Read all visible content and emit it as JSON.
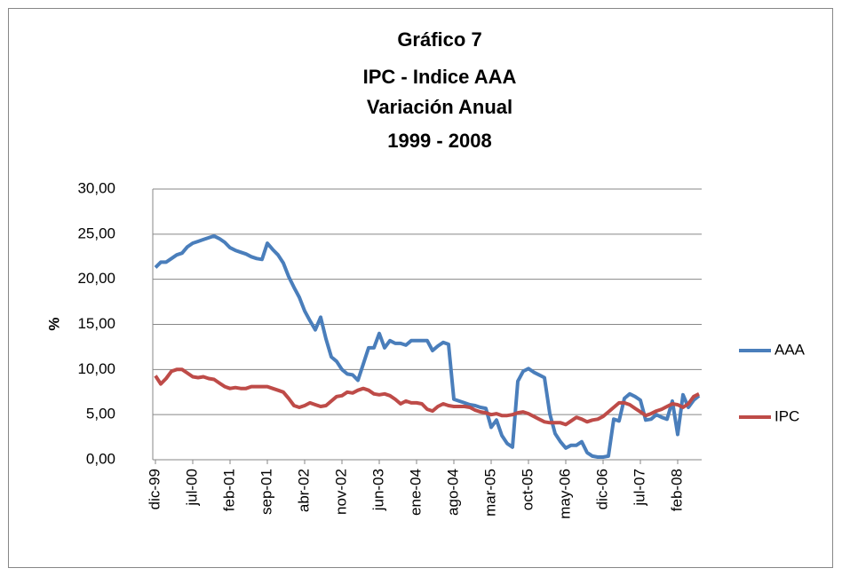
{
  "chart_data": {
    "type": "line",
    "title": [
      "Gráfico 7",
      "IPC - Indice AAA",
      "Variación Anual",
      "1999 - 2008"
    ],
    "y_label": "%",
    "categories": [
      "dic-99",
      null,
      null,
      null,
      null,
      null,
      null,
      "jul-00",
      null,
      null,
      null,
      null,
      null,
      null,
      "feb-01",
      null,
      null,
      null,
      null,
      null,
      null,
      "sep-01",
      null,
      null,
      null,
      null,
      null,
      null,
      "abr-02",
      null,
      null,
      null,
      null,
      null,
      null,
      "nov-02",
      null,
      null,
      null,
      null,
      null,
      null,
      "jun-03",
      null,
      null,
      null,
      null,
      null,
      null,
      "ene-04",
      null,
      null,
      null,
      null,
      null,
      null,
      "ago-04",
      null,
      null,
      null,
      null,
      null,
      null,
      "mar-05",
      null,
      null,
      null,
      null,
      null,
      null,
      "oct-05",
      null,
      null,
      null,
      null,
      null,
      null,
      "may-06",
      null,
      null,
      null,
      null,
      null,
      null,
      "dic-06",
      null,
      null,
      null,
      null,
      null,
      null,
      "jul-07",
      null,
      null,
      null,
      null,
      null,
      null,
      "feb-08",
      null,
      null,
      null,
      null
    ],
    "series": [
      {
        "name": "AAA",
        "color": "#4a7ebb",
        "values": [
          21.3,
          21.9,
          21.9,
          22.3,
          22.7,
          22.9,
          23.6,
          24,
          24.2,
          24.4,
          24.6,
          24.8,
          24.5,
          24.1,
          23.5,
          23.2,
          23,
          22.8,
          22.5,
          22.3,
          22.2,
          24,
          23.3,
          22.7,
          21.8,
          20.3,
          19.1,
          18,
          16.5,
          15.4,
          14.4,
          15.8,
          13.4,
          11.4,
          10.9,
          10,
          9.5,
          9.4,
          8.8,
          10.6,
          12.4,
          12.4,
          14,
          12.4,
          13.2,
          12.9,
          12.9,
          12.7,
          13.2,
          13.2,
          13.2,
          13.2,
          12.1,
          12.6,
          13,
          12.8,
          6.7,
          6.5,
          6.3,
          6.1,
          6,
          5.8,
          5.7,
          3.6,
          4.4,
          2.7,
          1.8,
          1.4,
          8.7,
          9.8,
          10.1,
          9.7,
          9.4,
          9.1,
          5.1,
          2.9,
          2,
          1.3,
          1.6,
          1.6,
          2,
          0.8,
          0.4,
          0.3,
          0.3,
          0.4,
          4.5,
          4.3,
          6.8,
          7.3,
          7,
          6.6,
          4.4,
          4.5,
          5,
          4.7,
          4.5,
          6.5,
          2.8,
          7.2,
          5.8,
          6.6,
          7.1
        ]
      },
      {
        "name": "IPC",
        "color": "#be4b48",
        "values": [
          9.3,
          8.4,
          9,
          9.8,
          10,
          10,
          9.6,
          9.2,
          9.1,
          9.2,
          9,
          8.9,
          8.5,
          8.1,
          7.9,
          8,
          7.9,
          7.9,
          8.1,
          8.1,
          8.1,
          8.1,
          7.9,
          7.7,
          7.5,
          6.8,
          6,
          5.8,
          6,
          6.3,
          6.1,
          5.9,
          6,
          6.5,
          7,
          7.1,
          7.5,
          7.4,
          7.7,
          7.9,
          7.7,
          7.3,
          7.2,
          7.3,
          7.1,
          6.7,
          6.2,
          6.5,
          6.3,
          6.3,
          6.2,
          5.6,
          5.4,
          5.9,
          6.2,
          6,
          5.9,
          5.9,
          5.9,
          5.8,
          5.5,
          5.3,
          5.2,
          5,
          5.1,
          4.9,
          4.9,
          5,
          5.2,
          5.3,
          5.1,
          4.8,
          4.5,
          4.2,
          4.1,
          4.1,
          4.1,
          3.9,
          4.3,
          4.7,
          4.5,
          4.2,
          4.4,
          4.5,
          4.8,
          5.3,
          5.8,
          6.3,
          6.3,
          6.1,
          5.7,
          5.3,
          4.9,
          5.1,
          5.4,
          5.6,
          5.9,
          6.2,
          6.1,
          5.8,
          6.2,
          7,
          7.3
        ]
      }
    ],
    "ylim": [
      0,
      30
    ],
    "yticks": [
      {
        "value": 0,
        "label": "0,00"
      },
      {
        "value": 5,
        "label": "5,00"
      },
      {
        "value": 10,
        "label": "10,00"
      },
      {
        "value": 15,
        "label": "15,00"
      },
      {
        "value": 20,
        "label": "20,00"
      },
      {
        "value": 25,
        "label": "25,00"
      },
      {
        "value": 30,
        "label": "30,00"
      }
    ],
    "grid": true,
    "legend": "right"
  }
}
